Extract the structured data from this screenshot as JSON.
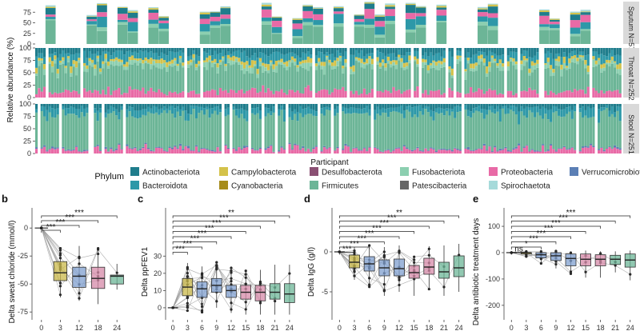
{
  "figure": {
    "top_ylabel": "Relative abundance (%)",
    "top_xlabel": "Participant",
    "legend_title": "Phylum"
  },
  "colors": {
    "Actinobacteriota": "#1f7d8c",
    "Bacteroidota": "#2d98a8",
    "Campylobacterota": "#d4c24a",
    "Cyanobacteria": "#a68c1c",
    "Desulfobacterota": "#8a4f73",
    "Firmicutes": "#6cb597",
    "Fusobacteriota": "#8ccfb0",
    "Patescibacteria": "#666666",
    "Proteobacteria": "#e86aa6",
    "Spirochaetota": "#a6dada",
    "Verrucomicrobiota": "#5b7fb5"
  },
  "chart_data": [
    {
      "type": "stacked_bar",
      "panel": "a-sputum",
      "facet_label": "Sputum N=57",
      "n_samples": 57,
      "ylim": [
        0,
        100
      ],
      "yticks": [
        0,
        25,
        50,
        75
      ],
      "mean_composition": [
        {
          "phylum": "Firmicutes",
          "value": 44
        },
        {
          "phylum": "Fusobacteriota",
          "value": 6
        },
        {
          "phylum": "Bacteroidota",
          "value": 16
        },
        {
          "phylum": "Proteobacteria",
          "value": 14
        },
        {
          "phylum": "Actinobacteriota",
          "value": 14
        },
        {
          "phylum": "Campylobacterota",
          "value": 3
        },
        {
          "phylum": "Spirochaetota",
          "value": 3
        }
      ]
    },
    {
      "type": "stacked_bar",
      "panel": "a-throat",
      "facet_label": "Throat N=252",
      "n_samples": 252,
      "ylim": [
        0,
        100
      ],
      "yticks": [
        0,
        25,
        50,
        75,
        100
      ],
      "mean_composition": [
        {
          "phylum": "Proteobacteria",
          "value": 12
        },
        {
          "phylum": "Firmicutes",
          "value": 48
        },
        {
          "phylum": "Fusobacteriota",
          "value": 8
        },
        {
          "phylum": "Campylobacterota",
          "value": 7
        },
        {
          "phylum": "Bacteroidota",
          "value": 14
        },
        {
          "phylum": "Actinobacteriota",
          "value": 11
        }
      ]
    },
    {
      "type": "stacked_bar",
      "panel": "a-stool",
      "facet_label": "Stool N=251",
      "n_samples": 251,
      "ylim": [
        0,
        100
      ],
      "yticks": [
        0,
        25,
        50,
        75,
        100
      ],
      "mean_composition": [
        {
          "phylum": "Proteobacteria",
          "value": 8
        },
        {
          "phylum": "Verrucomicrobiota",
          "value": 2
        },
        {
          "phylum": "Firmicutes",
          "value": 70
        },
        {
          "phylum": "Bacteroidota",
          "value": 12
        },
        {
          "phylum": "Actinobacteriota",
          "value": 8
        }
      ]
    },
    {
      "type": "box",
      "panel": "b",
      "ylabel": "Delta sweat chloride (mmol/l)",
      "categories": [
        "0",
        "3",
        "12",
        "18",
        "24"
      ],
      "yticks": [
        0,
        -25,
        -50,
        -75
      ],
      "ylim": [
        -82,
        18
      ],
      "fill": "#c9b84a",
      "box_colors": [
        "#c9b84a",
        "#c9b84a",
        "#7f9fcf",
        "#d68aa8",
        "#6cb597"
      ],
      "boxes": [
        {
          "q1": 0,
          "median": 0,
          "q3": 0,
          "lo": 0,
          "hi": 0
        },
        {
          "q1": -47,
          "median": -40,
          "q3": -30,
          "lo": -62,
          "hi": -17
        },
        {
          "q1": -53,
          "median": -43,
          "q3": -35,
          "lo": -65,
          "hi": -16
        },
        {
          "q1": -54,
          "median": -45,
          "q3": -35,
          "lo": -68,
          "hi": -17
        },
        {
          "q1": -50,
          "median": -43,
          "q3": -42,
          "lo": -55,
          "hi": -32
        }
      ],
      "significance": [
        {
          "from": "0",
          "to": "3",
          "label": "***"
        },
        {
          "from": "0",
          "to": "12",
          "label": "***"
        },
        {
          "from": "0",
          "to": "18",
          "label": "***"
        },
        {
          "from": "0",
          "to": "24",
          "label": "***"
        }
      ]
    },
    {
      "type": "box",
      "panel": "c",
      "ylabel": "Delta ppFEV1",
      "categories": [
        "0",
        "3",
        "6",
        "9",
        "12",
        "15",
        "18",
        "21",
        "24"
      ],
      "yticks": [
        0,
        10,
        20,
        30
      ],
      "ylim": [
        -7,
        58
      ],
      "box_colors": [
        "#c9b84a",
        "#c9b84a",
        "#7f9fcf",
        "#7f9fcf",
        "#7f9fcf",
        "#d68aa8",
        "#d68aa8",
        "#6cb597",
        "#6cb597"
      ],
      "boxes": [
        {
          "q1": 0,
          "median": 0,
          "q3": 0,
          "lo": 0,
          "hi": 0
        },
        {
          "q1": 7,
          "median": 12,
          "q3": 17,
          "lo": -2,
          "hi": 26
        },
        {
          "q1": 6,
          "median": 11,
          "q3": 15,
          "lo": -3,
          "hi": 24
        },
        {
          "q1": 9,
          "median": 13,
          "q3": 17,
          "lo": 0,
          "hi": 27
        },
        {
          "q1": 6,
          "median": 10,
          "q3": 13,
          "lo": -3,
          "hi": 24
        },
        {
          "q1": 5,
          "median": 9,
          "q3": 13,
          "lo": -4,
          "hi": 22
        },
        {
          "q1": 4,
          "median": 9,
          "q3": 13,
          "lo": -4,
          "hi": 22
        },
        {
          "q1": 5,
          "median": 9,
          "q3": 14,
          "lo": -4,
          "hi": 25
        },
        {
          "q1": 3,
          "median": 8,
          "q3": 14,
          "lo": -4,
          "hi": 25
        }
      ],
      "significance": [
        {
          "from": "0",
          "to": "3",
          "label": "***"
        },
        {
          "from": "0",
          "to": "6",
          "label": "***"
        },
        {
          "from": "0",
          "to": "9",
          "label": "***"
        },
        {
          "from": "0",
          "to": "12",
          "label": "***"
        },
        {
          "from": "0",
          "to": "15",
          "label": "***"
        },
        {
          "from": "0",
          "to": "18",
          "label": "***"
        },
        {
          "from": "0",
          "to": "21",
          "label": "***"
        },
        {
          "from": "0",
          "to": "24",
          "label": "**"
        }
      ]
    },
    {
      "type": "box",
      "panel": "d",
      "ylabel": "Delta IgG (g/l)",
      "categories": [
        "0",
        "3",
        "6",
        "9",
        "12",
        "15",
        "18",
        "21",
        "24"
      ],
      "yticks": [
        0,
        -5
      ],
      "ylim": [
        -8.5,
        5.5
      ],
      "box_colors": [
        "#c9b84a",
        "#c9b84a",
        "#7f9fcf",
        "#7f9fcf",
        "#7f9fcf",
        "#d68aa8",
        "#d68aa8",
        "#6cb597",
        "#6cb597"
      ],
      "boxes": [
        {
          "q1": 0,
          "median": 0,
          "q3": 0,
          "lo": 0,
          "hi": 0
        },
        {
          "q1": -2.0,
          "median": -1.3,
          "q3": -0.4,
          "lo": -3.5,
          "hi": 0.6
        },
        {
          "q1": -2.4,
          "median": -1.5,
          "q3": -0.6,
          "lo": -4.5,
          "hi": 0.8
        },
        {
          "q1": -3.0,
          "median": -2.0,
          "q3": -1.0,
          "lo": -5.5,
          "hi": 0.6
        },
        {
          "q1": -3.0,
          "median": -2.1,
          "q3": -0.9,
          "lo": -5.0,
          "hi": 0.8
        },
        {
          "q1": -3.3,
          "median": -2.6,
          "q3": -1.7,
          "lo": -5.5,
          "hi": -0.5
        },
        {
          "q1": -2.8,
          "median": -1.9,
          "q3": -0.8,
          "lo": -4.8,
          "hi": 0.7
        },
        {
          "q1": -3.3,
          "median": -2.5,
          "q3": -1.3,
          "lo": -5.5,
          "hi": 0.8
        },
        {
          "q1": -3.1,
          "median": -2.0,
          "q3": -0.5,
          "lo": -5.0,
          "hi": 1.0
        }
      ],
      "significance": [
        {
          "from": "0",
          "to": "3",
          "label": "***"
        },
        {
          "from": "0",
          "to": "6",
          "label": "***"
        },
        {
          "from": "0",
          "to": "9",
          "label": "***"
        },
        {
          "from": "0",
          "to": "12",
          "label": "***"
        },
        {
          "from": "0",
          "to": "15",
          "label": "***"
        },
        {
          "from": "0",
          "to": "18",
          "label": "***"
        },
        {
          "from": "0",
          "to": "21",
          "label": "***"
        },
        {
          "from": "0",
          "to": "24",
          "label": "**"
        }
      ]
    },
    {
      "type": "box",
      "panel": "e",
      "ylabel": "Delta antibiotic treatment days",
      "categories": [
        "0",
        "3",
        "6",
        "9",
        "12",
        "15",
        "18",
        "21",
        "24"
      ],
      "yticks": [
        100,
        0,
        -100,
        -200
      ],
      "ylim": [
        -255,
        170
      ],
      "box_colors": [
        "#c9b84a",
        "#c9b84a",
        "#7f9fcf",
        "#7f9fcf",
        "#7f9fcf",
        "#d68aa8",
        "#d68aa8",
        "#6cb597",
        "#6cb597"
      ],
      "boxes": [
        {
          "q1": 0,
          "median": 0,
          "q3": 0,
          "lo": 0,
          "hi": 0
        },
        {
          "q1": -5,
          "median": 0,
          "q3": 0,
          "lo": -15,
          "hi": 5
        },
        {
          "q1": -20,
          "median": -8,
          "q3": 0,
          "lo": -45,
          "hi": 5
        },
        {
          "q1": -30,
          "median": -12,
          "q3": 0,
          "lo": -60,
          "hi": 8
        },
        {
          "q1": -50,
          "median": -22,
          "q3": -5,
          "lo": -85,
          "hi": 5
        },
        {
          "q1": -50,
          "median": -25,
          "q3": -5,
          "lo": -95,
          "hi": 8
        },
        {
          "q1": -50,
          "median": -25,
          "q3": -8,
          "lo": -95,
          "hi": 5
        },
        {
          "q1": -45,
          "median": -25,
          "q3": -10,
          "lo": -75,
          "hi": 5
        },
        {
          "q1": -55,
          "median": -28,
          "q3": -5,
          "lo": -105,
          "hi": 8
        }
      ],
      "significance": [
        {
          "from": "0",
          "to": "3",
          "label": "ns"
        },
        {
          "from": "0",
          "to": "6",
          "label": "*"
        },
        {
          "from": "0",
          "to": "9",
          "label": "***"
        },
        {
          "from": "0",
          "to": "12",
          "label": "***"
        },
        {
          "from": "0",
          "to": "15",
          "label": "***"
        },
        {
          "from": "0",
          "to": "18",
          "label": "***"
        },
        {
          "from": "0",
          "to": "21",
          "label": "***"
        },
        {
          "from": "0",
          "to": "24",
          "label": "***"
        }
      ]
    }
  ],
  "legend": {
    "items_row1": [
      "Actinobacteriota",
      "Campylobacterota",
      "Desulfobacterota",
      "Fusobacteriota",
      "Proteobacteria",
      "Verrucomicrobiota"
    ],
    "items_row2": [
      "Bacteroidota",
      "Cyanobacteria",
      "Firmicutes",
      "Patescibacteria",
      "Spirochaetota"
    ]
  }
}
